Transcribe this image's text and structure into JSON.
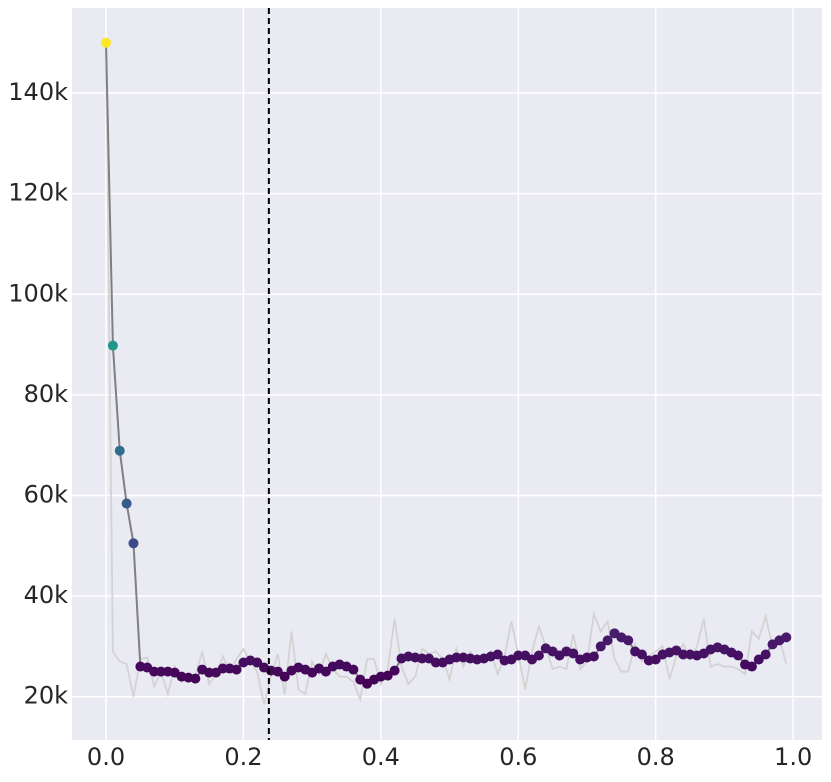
{
  "chart_data": {
    "type": "line",
    "x": [
      0,
      0.01,
      0.02,
      0.03,
      0.04,
      0.05,
      0.06,
      0.07,
      0.08,
      0.09,
      0.1,
      0.11,
      0.12,
      0.13,
      0.14,
      0.15,
      0.16,
      0.17,
      0.18,
      0.19,
      0.2,
      0.21,
      0.22,
      0.23,
      0.24,
      0.25,
      0.26,
      0.27,
      0.28,
      0.29,
      0.3,
      0.31,
      0.32,
      0.33,
      0.34,
      0.35,
      0.36,
      0.37,
      0.38,
      0.39,
      0.4,
      0.41,
      0.42,
      0.43,
      0.44,
      0.45,
      0.46,
      0.47,
      0.48,
      0.49,
      0.5,
      0.51,
      0.52,
      0.53,
      0.54,
      0.55,
      0.56,
      0.57,
      0.58,
      0.59,
      0.6,
      0.61,
      0.62,
      0.63,
      0.64,
      0.65,
      0.66,
      0.67,
      0.68,
      0.69,
      0.7,
      0.71,
      0.72,
      0.73,
      0.74,
      0.75,
      0.76,
      0.77,
      0.78,
      0.79,
      0.8,
      0.81,
      0.82,
      0.83,
      0.84,
      0.85,
      0.86,
      0.87,
      0.88,
      0.89,
      0.9,
      0.91,
      0.92,
      0.93,
      0.94,
      0.95,
      0.96,
      0.97,
      0.98,
      0.99
    ],
    "series": [
      {
        "color": "#d3d3d3",
        "markers": false,
        "values": [
          150000,
          29000,
          27000,
          26500,
          20000,
          27500,
          27800,
          22000,
          25000,
          20500,
          26000,
          23000,
          23500,
          24000,
          29000,
          22500,
          24500,
          28000,
          25000,
          27500,
          29500,
          27000,
          25000,
          18500,
          24000,
          28500,
          20500,
          33000,
          21500,
          20500,
          27000,
          24500,
          28500,
          25500,
          24000,
          24000,
          23000,
          19500,
          27500,
          27500,
          22500,
          25500,
          35500,
          26000,
          22500,
          24000,
          29500,
          28500,
          29000,
          27500,
          23500,
          29500,
          26000,
          29000,
          27000,
          28000,
          29000,
          24500,
          28000,
          35000,
          28500,
          21500,
          29000,
          34000,
          30000,
          25500,
          26000,
          25500,
          32500,
          25500,
          27000,
          36500,
          33000,
          35000,
          27500,
          25000,
          25000,
          30500,
          27000,
          28000,
          29000,
          30000,
          23500,
          28000,
          30500,
          27500,
          30000,
          35500,
          26000,
          26500,
          26000,
          26000,
          25500,
          24500,
          33000,
          31500,
          36000,
          30000,
          31500,
          26500
        ]
      },
      {
        "color": "#808080",
        "markers": true,
        "values": [
          150000,
          89800,
          68900,
          58400,
          50500,
          26000,
          25800,
          25000,
          25000,
          25000,
          24800,
          24000,
          23800,
          23600,
          25400,
          24800,
          24800,
          25600,
          25600,
          25400,
          26800,
          27200,
          26800,
          25800,
          25200,
          25000,
          24000,
          25200,
          25800,
          25400,
          24800,
          25600,
          25000,
          26000,
          26400,
          26000,
          25400,
          23400,
          22600,
          23400,
          24000,
          24200,
          25200,
          27600,
          28000,
          27800,
          27600,
          27600,
          26800,
          26800,
          27400,
          27800,
          27800,
          27600,
          27400,
          27600,
          28000,
          28400,
          27200,
          27400,
          28200,
          28200,
          27400,
          28200,
          29600,
          29000,
          28200,
          29000,
          28600,
          27400,
          27800,
          28000,
          30000,
          31200,
          32600,
          31800,
          31200,
          29000,
          28400,
          27200,
          27400,
          28400,
          28800,
          29200,
          28400,
          28400,
          28200,
          28600,
          29400,
          29800,
          29400,
          28800,
          28200,
          26400,
          26000,
          27400,
          28400,
          30400,
          31200,
          31800
        ]
      }
    ],
    "colormap": [
      "#440154",
      "#482878",
      "#3e4a89",
      "#31688e",
      "#26828e",
      "#1f9e89",
      "#35b779",
      "#6ece58",
      "#b5de2b",
      "#fde725"
    ],
    "vline": 0.237,
    "xlim": [
      -0.0495,
      1.042
    ],
    "ylim": [
      11400,
      156900
    ],
    "xticks": [
      {
        "value": 0,
        "label": "0.0"
      },
      0.2,
      0.4,
      0.6,
      0.8,
      {
        "value": 1,
        "label": "1.0"
      }
    ],
    "yticks": [
      {
        "value": 20000,
        "label": "20k"
      },
      {
        "value": 40000,
        "label": "40k"
      },
      {
        "value": 60000,
        "label": "60k"
      },
      {
        "value": 80000,
        "label": "80k"
      },
      {
        "value": 100000,
        "label": "100k"
      },
      {
        "value": 120000,
        "label": "120k"
      },
      {
        "value": 140000,
        "label": "140k"
      }
    ],
    "grid": true
  }
}
